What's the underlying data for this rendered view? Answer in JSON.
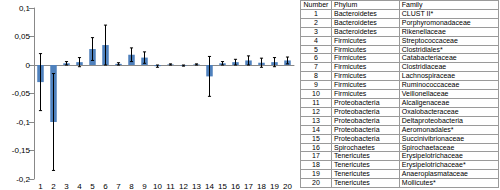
{
  "chart_data": {
    "type": "bar",
    "categories": [
      "1",
      "2",
      "3",
      "4",
      "5",
      "6",
      "7",
      "8",
      "9",
      "10",
      "11",
      "12",
      "13",
      "14",
      "15",
      "16",
      "17",
      "18",
      "19",
      "20"
    ],
    "values": [
      -0.03,
      -0.1,
      0.003,
      0.005,
      0.028,
      0.035,
      0.002,
      0.018,
      0.013,
      -0.002,
      0.001,
      -0.001,
      0.001,
      -0.02,
      0.003,
      0.005,
      0.008,
      0.004,
      0.005,
      0.008
    ],
    "errors": [
      0.05,
      0.085,
      0.003,
      0.008,
      0.02,
      0.035,
      0.002,
      0.012,
      0.01,
      0.002,
      0.001,
      0.001,
      0.001,
      0.035,
      0.003,
      0.005,
      0.008,
      0.008,
      0.008,
      0.006
    ],
    "color": "#4f81bd",
    "ylim": [
      -0.2,
      0.1
    ],
    "yticks": [
      {
        "value": -0.2,
        "label": "-0,2"
      },
      {
        "value": -0.15,
        "label": "-0,15"
      },
      {
        "value": -0.1,
        "label": "-0,1"
      },
      {
        "value": -0.05,
        "label": "-0,05"
      },
      0,
      {
        "value": 0.05,
        "label": "0,05"
      },
      {
        "value": 0.1,
        "label": "0,1"
      }
    ],
    "grid": false
  },
  "table": {
    "header": [
      "Number",
      "Phylum",
      "Family"
    ],
    "rows": [
      [
        "1",
        "Bacteroidetes",
        "CLUST II*"
      ],
      [
        "2",
        "Bacteroidetes",
        "Porphyromonadaceae"
      ],
      [
        "3",
        "Bacteroidetes",
        "Rikenellaceae"
      ],
      [
        "4",
        "Firmicutes",
        "Streptococcaceae"
      ],
      [
        "5",
        "Firmicutes",
        "Clostridiales*"
      ],
      [
        "6",
        "Firmicutes",
        "Catabacteriaceae"
      ],
      [
        "7",
        "Firmicutes",
        "Clostridiaceae"
      ],
      [
        "8",
        "Firmicutes",
        "Lachnospiraceae"
      ],
      [
        "9",
        "Firmicutes",
        "Ruminococcaceae"
      ],
      [
        "10",
        "Firmicutes",
        "Veillonellaceae"
      ],
      [
        "11",
        "Proteobacteria",
        "Alcaligenaceae"
      ],
      [
        "12",
        "Proteobacteria",
        "Oxalobacteraceae"
      ],
      [
        "13",
        "Proteobacteria",
        "Deltaproteobacteria"
      ],
      [
        "14",
        "Proteobacteria",
        "Aeromonadales*"
      ],
      [
        "15",
        "Proteobacteria",
        "Succinivibrionaceae"
      ],
      [
        "16",
        "Spirochaetes",
        "Spirochaetaceae"
      ],
      [
        "17",
        "Tenericutes",
        "Erysipelotrichaceae"
      ],
      [
        "18",
        "Tenericutes",
        "Erysipelotrichaceae*"
      ],
      [
        "19",
        "Tenericutes",
        "Anaeroplasmataceae"
      ],
      [
        "20",
        "Tenericutes",
        "Mollicutes*"
      ]
    ]
  }
}
